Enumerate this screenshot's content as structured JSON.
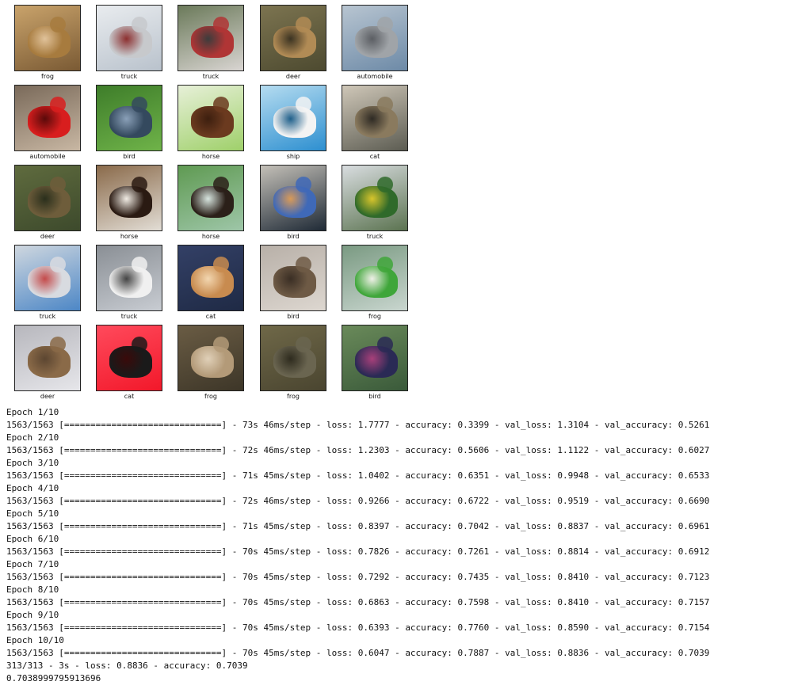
{
  "images": [
    {
      "label": "frog",
      "bg": "#7a5a34",
      "bg2": "#c9a36b",
      "fg": "#a77b3e",
      "fg2": "#e0c29a"
    },
    {
      "label": "truck",
      "bg": "#b9c2cc",
      "bg2": "#e9ecef",
      "fg": "#c7c9cc",
      "fg2": "#8c2f2f"
    },
    {
      "label": "truck",
      "bg": "#d9d5d2",
      "bg2": "#6b7a5a",
      "fg": "#b03535",
      "fg2": "#3c3c3c"
    },
    {
      "label": "deer",
      "bg": "#4d4a30",
      "bg2": "#7c7450",
      "fg": "#b18b55",
      "fg2": "#3b3322"
    },
    {
      "label": "automobile",
      "bg": "#6d8aa7",
      "bg2": "#b8c5d1",
      "fg": "#a0a4a8",
      "fg2": "#5b5e63"
    },
    {
      "label": "automobile",
      "bg": "#c8b7a3",
      "bg2": "#7a6a5a",
      "fg": "#d81e1e",
      "fg2": "#5a0a0a"
    },
    {
      "label": "bird",
      "bg": "#6fb349",
      "bg2": "#3e7d2a",
      "fg": "#34495e",
      "fg2": "#8aa0b8"
    },
    {
      "label": "horse",
      "bg": "#9fd06a",
      "bg2": "#e7f0d8",
      "fg": "#6b3a1f",
      "fg2": "#3d1f0f"
    },
    {
      "label": "ship",
      "bg": "#2d8fd0",
      "bg2": "#b5dcf0",
      "fg": "#f3f3f3",
      "fg2": "#1e5f8a"
    },
    {
      "label": "cat",
      "bg": "#5c5c52",
      "bg2": "#cfc7b8",
      "fg": "#8a7a5e",
      "fg2": "#2e2a24"
    },
    {
      "label": "deer",
      "bg": "#3d4a2c",
      "bg2": "#5f6b3e",
      "fg": "#6e5d3b",
      "fg2": "#2a2f1c"
    },
    {
      "label": "horse",
      "bg": "#e2ddd5",
      "bg2": "#8a6a4a",
      "fg": "#2a1a12",
      "fg2": "#f1ece4"
    },
    {
      "label": "horse",
      "bg": "#9ec6a8",
      "bg2": "#5f9a52",
      "fg": "#2b2019",
      "fg2": "#d7e5df"
    },
    {
      "label": "bird",
      "bg": "#1f2a36",
      "bg2": "#c4c0b8",
      "fg": "#3f69b8",
      "fg2": "#d99a57"
    },
    {
      "label": "truck",
      "bg": "#5b7350",
      "bg2": "#d9dde0",
      "fg": "#2f6a2a",
      "fg2": "#d8c52c"
    },
    {
      "label": "truck",
      "bg": "#4d87c6",
      "bg2": "#cfd7df",
      "fg": "#d8dbe0",
      "fg2": "#c44a4a"
    },
    {
      "label": "truck",
      "bg": "#c8ccd2",
      "bg2": "#8a8f95",
      "fg": "#f0f0f0",
      "fg2": "#444444"
    },
    {
      "label": "cat",
      "bg": "#1f2a45",
      "bg2": "#334066",
      "fg": "#c88b4f",
      "fg2": "#f2d6b0"
    },
    {
      "label": "bird",
      "bg": "#ddd7d0",
      "bg2": "#b8b0a8",
      "fg": "#6e5a45",
      "fg2": "#3a2e24"
    },
    {
      "label": "frog",
      "bg": "#c9d6cf",
      "bg2": "#7a9a82",
      "fg": "#3fa63a",
      "fg2": "#f0f0e8"
    },
    {
      "label": "deer",
      "bg": "#e6e6ea",
      "bg2": "#b7b7bd",
      "fg": "#8a6a48",
      "fg2": "#5c4631"
    },
    {
      "label": "cat",
      "bg": "#f2182a",
      "bg2": "#ff4a5c",
      "fg": "#1a1a1a",
      "fg2": "#3a0a0a"
    },
    {
      "label": "frog",
      "bg": "#3d3628",
      "bg2": "#6a5c44",
      "fg": "#b39a78",
      "fg2": "#e0d0b8"
    },
    {
      "label": "frog",
      "bg": "#4a4530",
      "bg2": "#6f6848",
      "fg": "#6a6550",
      "fg2": "#2e2b1e"
    },
    {
      "label": "bird",
      "bg": "#3a5a3a",
      "bg2": "#6a8a5a",
      "fg": "#2a2a55",
      "fg2": "#a8407a"
    }
  ],
  "log": [
    "Epoch 1/10",
    "1563/1563 [==============================] - 73s 46ms/step - loss: 1.7777 - accuracy: 0.3399 - val_loss: 1.3104 - val_accuracy: 0.5261",
    "Epoch 2/10",
    "1563/1563 [==============================] - 72s 46ms/step - loss: 1.2303 - accuracy: 0.5606 - val_loss: 1.1122 - val_accuracy: 0.6027",
    "Epoch 3/10",
    "1563/1563 [==============================] - 71s 45ms/step - loss: 1.0402 - accuracy: 0.6351 - val_loss: 0.9948 - val_accuracy: 0.6533",
    "Epoch 4/10",
    "1563/1563 [==============================] - 72s 46ms/step - loss: 0.9266 - accuracy: 0.6722 - val_loss: 0.9519 - val_accuracy: 0.6690",
    "Epoch 5/10",
    "1563/1563 [==============================] - 71s 45ms/step - loss: 0.8397 - accuracy: 0.7042 - val_loss: 0.8837 - val_accuracy: 0.6961",
    "Epoch 6/10",
    "1563/1563 [==============================] - 70s 45ms/step - loss: 0.7826 - accuracy: 0.7261 - val_loss: 0.8814 - val_accuracy: 0.6912",
    "Epoch 7/10",
    "1563/1563 [==============================] - 70s 45ms/step - loss: 0.7292 - accuracy: 0.7435 - val_loss: 0.8410 - val_accuracy: 0.7123",
    "Epoch 8/10",
    "1563/1563 [==============================] - 70s 45ms/step - loss: 0.6863 - accuracy: 0.7598 - val_loss: 0.8410 - val_accuracy: 0.7157",
    "Epoch 9/10",
    "1563/1563 [==============================] - 70s 45ms/step - loss: 0.6393 - accuracy: 0.7760 - val_loss: 0.8590 - val_accuracy: 0.7154",
    "Epoch 10/10",
    "1563/1563 [==============================] - 70s 45ms/step - loss: 0.6047 - accuracy: 0.7887 - val_loss: 0.8836 - val_accuracy: 0.7039",
    "313/313 - 3s - loss: 0.8836 - accuracy: 0.7039",
    "0.7038999795913696"
  ]
}
